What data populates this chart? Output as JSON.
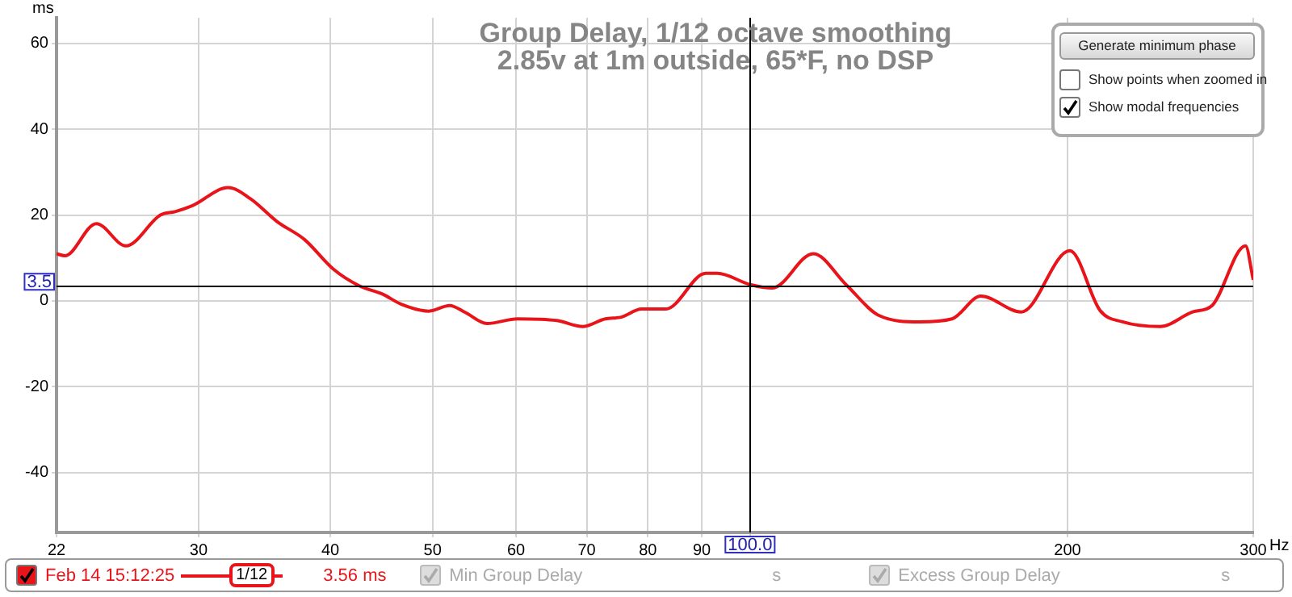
{
  "chart_data": {
    "type": "line",
    "title": "Group Delay, 1/12 octave smoothing",
    "subtitle": "2.85v at 1m outside, 65*F, no DSP",
    "xlabel": "Hz",
    "ylabel": "ms",
    "log": "x",
    "grid": true,
    "legend": "bottom",
    "marker": "none",
    "line_style": "solid",
    "xlim": [
      22,
      300
    ],
    "xticks": [
      22,
      30,
      40,
      50,
      60,
      70,
      80,
      90,
      {
        "value": 100,
        "label": null
      },
      200,
      300
    ],
    "ylim": [
      -54,
      66
    ],
    "yticks": [
      -40,
      -20,
      0,
      20,
      40,
      60
    ],
    "series": [
      {
        "name": "Feb 14 15:12:25",
        "color": "#e8141a",
        "x": [
          22,
          22.4,
          24,
          25.6,
          27.6,
          28.5,
          29.6,
          32,
          33.6,
          35.6,
          37.8,
          40.3,
          42.6,
          44.8,
          46.7,
          49.6,
          51.9,
          53.7,
          56.3,
          60.2,
          65.6,
          69.4,
          72.9,
          75.5,
          78.9,
          83.2,
          90.8,
          93.1,
          100,
          105,
          114.8,
          123.3,
          132.5,
          144.8,
          155.4,
          165.5,
          180.8,
          201,
          214.8,
          225.5,
          244.8,
          262.8,
          274.2,
          295,
          300
        ],
        "values": [
          11,
          10.5,
          18,
          12.8,
          20,
          20.8,
          22.2,
          26.4,
          23.8,
          18.5,
          14.3,
          7.3,
          3.5,
          1.6,
          -0.8,
          -2.4,
          -1.1,
          -2.7,
          -5.3,
          -4.2,
          -4.6,
          -6,
          -4.2,
          -3.8,
          -1.9,
          -1.9,
          6.4,
          6.4,
          3.8,
          3,
          11,
          3.8,
          -3.4,
          -4.9,
          -4.2,
          1.1,
          -2.6,
          11.7,
          -2.3,
          -4.9,
          -6,
          -2.6,
          -1.1,
          12.8,
          4.9
        ]
      }
    ],
    "ref_lines": [
      {
        "axis": "x",
        "value": 100,
        "label": "100.0",
        "color": "#000000"
      },
      {
        "axis": "y",
        "value": 3.5,
        "label": "3.5",
        "color": "#000000"
      }
    ],
    "annotations": [
      "Generate minimum phase",
      "Show points when zoomed in",
      "Show modal frequencies",
      "1/12",
      "3.56 ms",
      "Min Group Delay",
      "s",
      "Excess Group Delay",
      "s"
    ]
  }
}
